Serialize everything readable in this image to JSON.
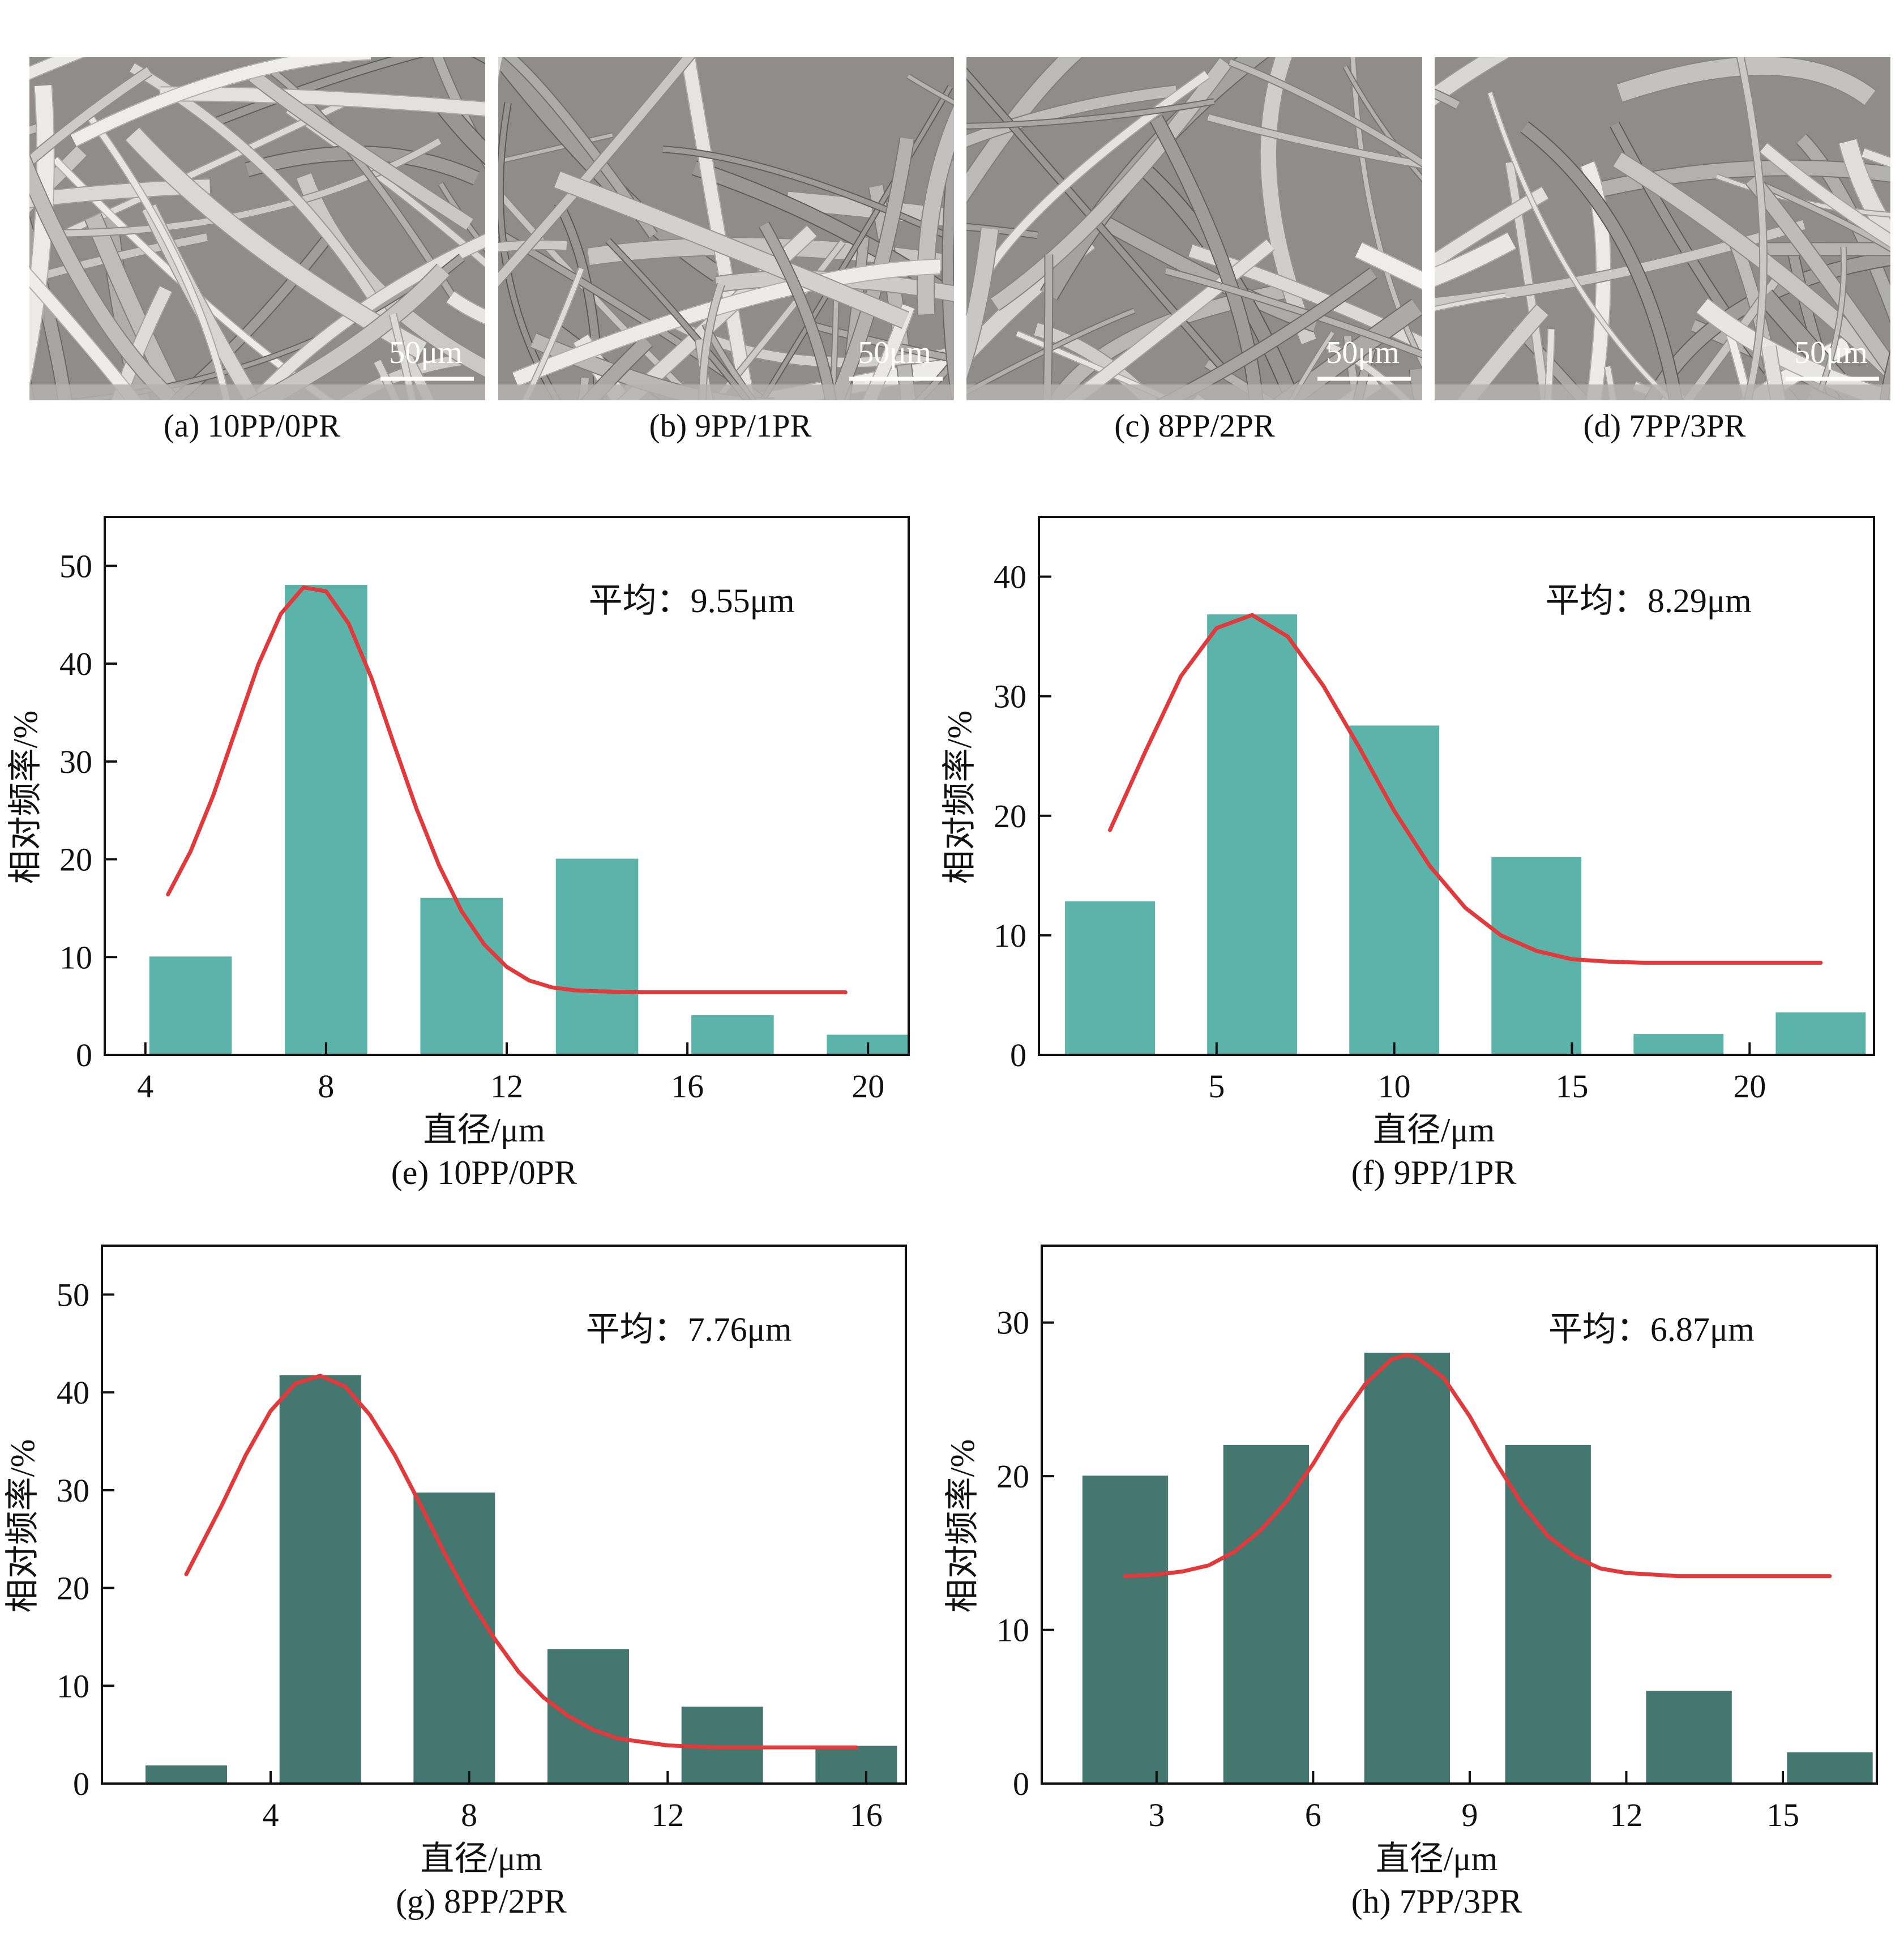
{
  "sem_panels": [
    {
      "caption": "(a) 10PP/0PR",
      "scale_label": "50μm"
    },
    {
      "caption": "(b) 9PP/1PR",
      "scale_label": "50μm"
    },
    {
      "caption": "(c) 8PP/2PR",
      "scale_label": "50μm"
    },
    {
      "caption": "(d) 7PP/3PR",
      "scale_label": "50μm"
    }
  ],
  "colors": {
    "teal_bar": "#5bb3a9",
    "dark_bar": "#44776f",
    "curve": "#e03a3c",
    "axis": "#111111"
  },
  "chart_data": [
    {
      "type": "bar",
      "caption": "(e) 10PP/0PR",
      "xlabel": "直径/μm",
      "ylabel": "相对频率/%",
      "annotation": "平均：9.55μm",
      "x": [
        5,
        8,
        11,
        14,
        17,
        20
      ],
      "values": [
        10,
        48,
        16,
        20,
        4,
        2
      ],
      "bar_width": 1.8,
      "xlim": [
        3.1,
        20.9
      ],
      "xticks": [
        4,
        8,
        12,
        16,
        20
      ],
      "ylim": [
        0,
        55
      ],
      "yticks": [
        0,
        10,
        20,
        30,
        40,
        50
      ],
      "bar_color": "#5bb3a9",
      "fit": {
        "x": [
          4.5,
          5,
          5.5,
          6,
          6.5,
          7,
          7.5,
          8,
          8.5,
          9,
          9.5,
          10,
          10.5,
          11,
          11.5,
          12,
          12.5,
          13,
          13.5,
          14,
          15,
          16,
          17,
          18,
          19,
          19.5
        ],
        "y": [
          16.4,
          20.8,
          26.5,
          33.2,
          39.9,
          45.1,
          47.8,
          47.4,
          44.1,
          38.6,
          31.8,
          25.2,
          19.4,
          14.7,
          11.3,
          9.0,
          7.6,
          6.9,
          6.6,
          6.5,
          6.4,
          6.4,
          6.4,
          6.4,
          6.4,
          6.4
        ]
      }
    },
    {
      "type": "bar",
      "caption": "(f) 9PP/1PR",
      "xlabel": "直径/μm",
      "ylabel": "相对频率/%",
      "annotation": "平均：8.29μm",
      "x": [
        2,
        6,
        10,
        14,
        18,
        22
      ],
      "values": [
        12.8,
        36.8,
        27.5,
        16.5,
        1.7,
        3.5
      ],
      "bar_width": 2.5,
      "xlim": [
        0,
        23.5
      ],
      "xticks": [
        5,
        10,
        15,
        20
      ],
      "ylim": [
        0,
        45
      ],
      "yticks": [
        0,
        10,
        20,
        30,
        40
      ],
      "bar_color": "#5bb3a9",
      "fit": {
        "x": [
          2,
          3,
          4,
          5,
          6,
          7,
          8,
          9,
          10,
          11,
          12,
          13,
          14,
          15,
          16,
          17,
          18,
          19,
          20,
          21,
          22
        ],
        "y": [
          18.8,
          25.4,
          31.7,
          35.7,
          36.8,
          35.0,
          30.9,
          25.8,
          20.4,
          15.8,
          12.3,
          10.0,
          8.7,
          8.0,
          7.8,
          7.7,
          7.7,
          7.7,
          7.7,
          7.7,
          7.7
        ]
      }
    },
    {
      "type": "bar",
      "caption": "(g) 8PP/2PR",
      "xlabel": "直径/μm",
      "ylabel": "相对频率/%",
      "annotation": "平均：7.76μm",
      "x": [
        2.3,
        5,
        7.7,
        10.4,
        13.1,
        15.8
      ],
      "values": [
        1.8,
        41.7,
        29.7,
        13.7,
        7.8,
        3.8
      ],
      "bar_width": 1.62,
      "xlim": [
        0.6,
        16.8
      ],
      "xticks": [
        4,
        8,
        12,
        16
      ],
      "ylim": [
        0,
        55
      ],
      "yticks": [
        0,
        10,
        20,
        30,
        40,
        50
      ],
      "bar_color": "#44776f",
      "fit": {
        "x": [
          2.3,
          3,
          3.5,
          4,
          4.5,
          5,
          5.5,
          6,
          6.5,
          7,
          7.5,
          8,
          8.5,
          9,
          9.5,
          10,
          10.5,
          11,
          12,
          13,
          14,
          15,
          15.8
        ],
        "y": [
          21.4,
          28.3,
          33.6,
          38.1,
          40.9,
          41.7,
          40.6,
          37.7,
          33.6,
          28.7,
          23.6,
          18.9,
          14.9,
          11.4,
          8.8,
          6.9,
          5.5,
          4.6,
          3.9,
          3.7,
          3.7,
          3.7,
          3.7
        ]
      }
    },
    {
      "type": "bar",
      "caption": "(h) 7PP/3PR",
      "xlabel": "直径/μm",
      "ylabel": "相对频率/%",
      "annotation": "平均：6.87μm",
      "x": [
        2.4,
        5.1,
        7.8,
        10.5,
        13.2,
        15.9
      ],
      "values": [
        20,
        22,
        28,
        22,
        6,
        2
      ],
      "bar_width": 1.62,
      "xlim": [
        0.8,
        16.8
      ],
      "xticks": [
        3,
        6,
        9,
        12,
        15
      ],
      "ylim": [
        0,
        35
      ],
      "yticks": [
        0,
        10,
        20,
        30
      ],
      "bar_color": "#44776f",
      "fit": {
        "x": [
          2.4,
          3,
          3.5,
          4,
          4.5,
          5,
          5.5,
          6,
          6.5,
          7,
          7.5,
          7.8,
          8,
          8.5,
          9,
          9.5,
          10,
          10.5,
          11,
          11.5,
          12,
          13,
          14,
          15,
          15.9
        ],
        "y": [
          13.5,
          13.6,
          13.8,
          14.2,
          15.1,
          16.5,
          18.4,
          20.8,
          23.6,
          26.0,
          27.6,
          27.9,
          27.7,
          26.4,
          23.9,
          20.9,
          18.2,
          16.1,
          14.8,
          14.0,
          13.7,
          13.5,
          13.5,
          13.5,
          13.5
        ]
      }
    }
  ]
}
